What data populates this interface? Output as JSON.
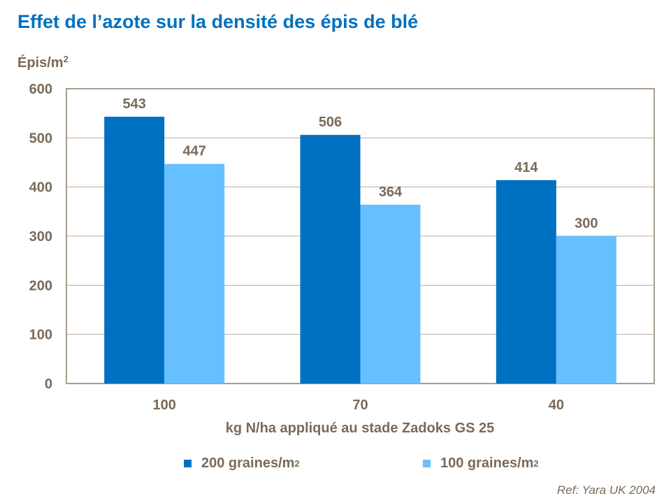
{
  "chart_data": {
    "type": "bar",
    "title": "Effet de l’azote sur la densité des épis de blé",
    "ylabel": "Épis/m",
    "ylabel_sup": "2",
    "xlabel": "kg N/ha appliqué au stade Zadoks GS 25",
    "categories": [
      "100",
      "70",
      "40"
    ],
    "ylim": [
      0,
      600
    ],
    "yticks": [
      "0",
      "100",
      "200",
      "300",
      "400",
      "500",
      "600"
    ],
    "grid": true,
    "legend": "bottom",
    "series": [
      {
        "name": "200 graines/m",
        "name_sup": "2",
        "color": "#0070c0",
        "values": [
          543,
          506,
          414
        ]
      },
      {
        "name": "100 graines/m",
        "name_sup": "2",
        "color": "#66bfff",
        "values": [
          447,
          364,
          300
        ]
      }
    ],
    "source": "Ref: Yara UK 2004"
  }
}
